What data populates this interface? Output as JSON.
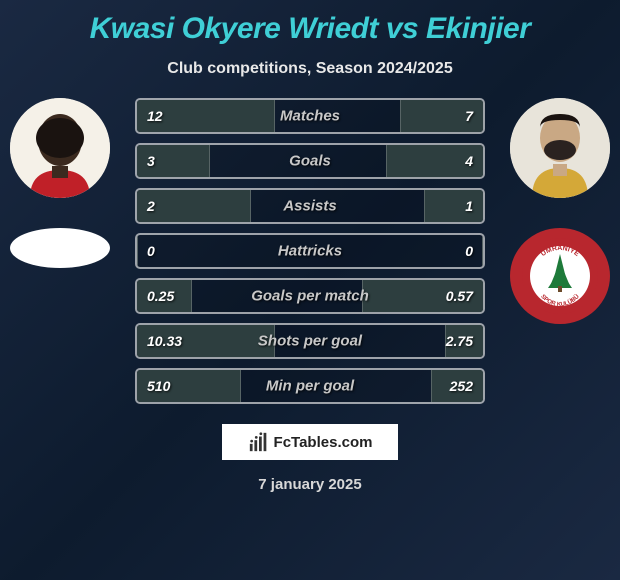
{
  "title": "Kwasi Okyere Wriedt vs Ekinjier",
  "subtitle": "Club competitions, Season 2024/2025",
  "date": "7 january 2025",
  "footer_brand": "FcTables.com",
  "colors": {
    "title": "#3fcfd6",
    "bar_fill": "#2d3e3f",
    "bg_start": "#1a2942",
    "bg_end": "#0d1b2e",
    "right_club": "#b8272e"
  },
  "player_left": {
    "name": "Kwasi Okyere Wriedt"
  },
  "player_right": {
    "name": "Ekinjier"
  },
  "stats": [
    {
      "label": "Matches",
      "left_val": "12",
      "right_val": "7",
      "left_pct": 40,
      "right_pct": 24
    },
    {
      "label": "Goals",
      "left_val": "3",
      "right_val": "4",
      "left_pct": 21,
      "right_pct": 28
    },
    {
      "label": "Assists",
      "left_val": "2",
      "right_val": "1",
      "left_pct": 33,
      "right_pct": 17
    },
    {
      "label": "Hattricks",
      "left_val": "0",
      "right_val": "0",
      "left_pct": 0,
      "right_pct": 0
    },
    {
      "label": "Goals per match",
      "left_val": "0.25",
      "right_val": "0.57",
      "left_pct": 16,
      "right_pct": 35
    },
    {
      "label": "Shots per goal",
      "left_val": "10.33",
      "right_val": "2.75",
      "left_pct": 40,
      "right_pct": 11
    },
    {
      "label": "Min per goal",
      "left_val": "510",
      "right_val": "252",
      "left_pct": 30,
      "right_pct": 15
    }
  ]
}
